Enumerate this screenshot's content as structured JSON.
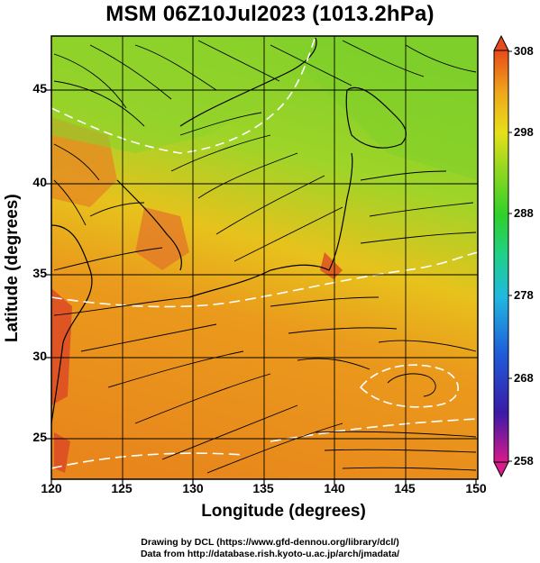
{
  "chart_data": {
    "type": "heatmap",
    "title": "MSM 06Z10Jul2023 (1013.2hPa)",
    "xlabel": "Longitude (degrees)",
    "ylabel": "Latitude  (degrees)",
    "x_ticks": [
      "120",
      "125",
      "130",
      "135",
      "140",
      "145",
      "150"
    ],
    "y_ticks": [
      "25",
      "30",
      "35",
      "40",
      "45"
    ],
    "xlim": [
      120,
      150
    ],
    "ylim": [
      22.5,
      47.6
    ],
    "colorbar": {
      "ticks": [
        "308",
        "298",
        "288",
        "278",
        "268",
        "258"
      ],
      "range": [
        258,
        308
      ],
      "colors": [
        "#d81a8a",
        "#3a1aa8",
        "#1f5ad8",
        "#1fb8e0",
        "#1fd08a",
        "#2fd02a",
        "#9ad81f",
        "#e6e01a",
        "#f0a51a",
        "#e84a1a"
      ]
    },
    "field_colors": {
      "warm": "#ea8a1c",
      "mid": "#e7b81c",
      "cool": "#7fcf2a",
      "hot": "#dc4a24"
    },
    "grid": true,
    "overlay": "streamlines"
  },
  "credits": {
    "line1": "Drawing by DCL (https://www.gfd-dennou.org/library/dcl/)",
    "line2": "Data from http://database.rish.kyoto-u.ac.jp/arch/jmadata/"
  }
}
